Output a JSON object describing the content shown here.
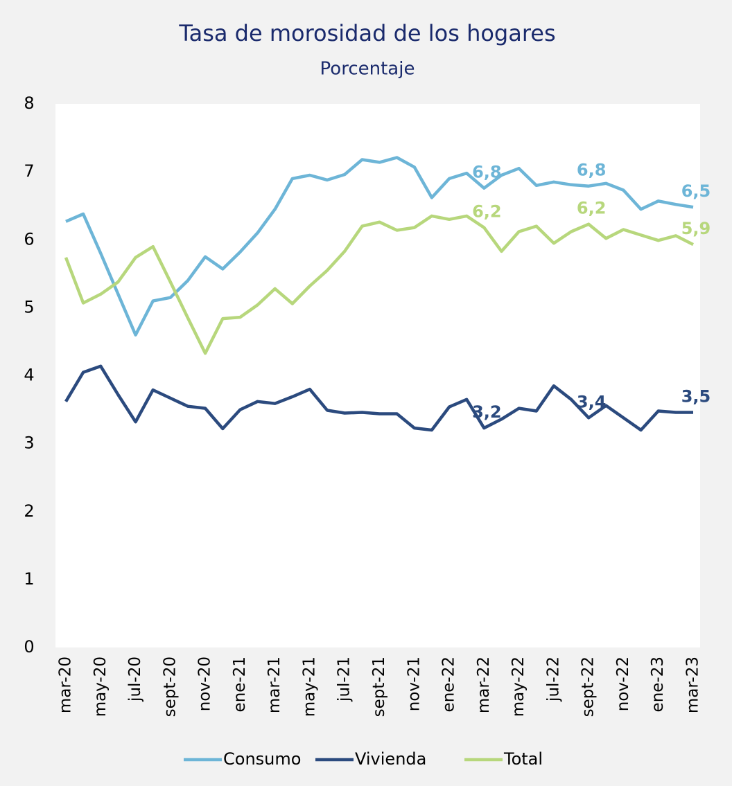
{
  "chart_data": {
    "type": "line",
    "title": "Tasa de morosidad de los hogares",
    "subtitle": "Porcentaje",
    "categories": [
      "mar-20",
      null,
      "may-20",
      null,
      "jul-20",
      null,
      "sept-20",
      null,
      "nov-20",
      null,
      "ene-21",
      null,
      "mar-21",
      null,
      "may-21",
      null,
      "jul-21",
      null,
      "sept-21",
      null,
      "nov-21",
      null,
      "ene-22",
      null,
      "mar-22",
      null,
      "may-22",
      null,
      "jul-22",
      null,
      "sept-22",
      null,
      "nov-22",
      null,
      "ene-23",
      null,
      "mar-23"
    ],
    "series": [
      {
        "name": "Consumo",
        "color": "#6db5d7",
        "values": [
          6.27,
          6.38,
          5.8,
          5.2,
          4.6,
          5.1,
          5.15,
          5.4,
          5.75,
          5.57,
          5.82,
          6.1,
          6.45,
          6.9,
          6.95,
          6.88,
          6.96,
          7.18,
          7.14,
          7.21,
          7.07,
          6.62,
          6.9,
          6.98,
          6.76,
          6.95,
          7.05,
          6.8,
          6.85,
          6.81,
          6.79,
          6.83,
          6.73,
          6.45,
          6.57,
          6.52,
          6.48
        ],
        "value_labels": [
          null,
          null,
          null,
          null,
          null,
          null,
          null,
          null,
          null,
          null,
          null,
          null,
          null,
          null,
          null,
          null,
          null,
          null,
          null,
          null,
          null,
          null,
          null,
          null,
          "6,8",
          null,
          null,
          null,
          null,
          null,
          "6,8",
          null,
          null,
          null,
          null,
          null,
          "6,5"
        ]
      },
      {
        "name": "Vivienda",
        "color": "#2b4a7e",
        "values": [
          3.62,
          4.05,
          4.14,
          3.72,
          3.32,
          3.79,
          3.67,
          3.55,
          3.52,
          3.22,
          3.5,
          3.62,
          3.59,
          3.69,
          3.8,
          3.49,
          3.45,
          3.46,
          3.44,
          3.44,
          3.23,
          3.2,
          3.54,
          3.65,
          3.23,
          3.36,
          3.52,
          3.48,
          3.85,
          3.65,
          3.38,
          3.56,
          3.38,
          3.2,
          3.48,
          3.46,
          3.46
        ],
        "value_labels": [
          null,
          null,
          null,
          null,
          null,
          null,
          null,
          null,
          null,
          null,
          null,
          null,
          null,
          null,
          null,
          null,
          null,
          null,
          null,
          null,
          null,
          null,
          null,
          null,
          "3,2",
          null,
          null,
          null,
          null,
          null,
          "3,4",
          null,
          null,
          null,
          null,
          null,
          "3,5"
        ]
      },
      {
        "name": "Total",
        "color": "#b7d77c",
        "values": [
          5.74,
          5.07,
          5.2,
          5.38,
          5.74,
          5.9,
          5.38,
          4.85,
          4.33,
          4.84,
          4.86,
          5.04,
          5.28,
          5.06,
          5.32,
          5.55,
          5.83,
          6.2,
          6.26,
          6.14,
          6.18,
          6.35,
          6.3,
          6.35,
          6.18,
          5.83,
          6.12,
          6.2,
          5.95,
          6.12,
          6.23,
          6.02,
          6.15,
          6.07,
          5.99,
          6.06,
          5.93
        ],
        "value_labels": [
          null,
          null,
          null,
          null,
          null,
          null,
          null,
          null,
          null,
          null,
          null,
          null,
          null,
          null,
          null,
          null,
          null,
          null,
          null,
          null,
          null,
          null,
          null,
          null,
          "6,2",
          null,
          null,
          null,
          null,
          null,
          "6,2",
          null,
          null,
          null,
          null,
          null,
          "5,9"
        ]
      }
    ],
    "ylim": [
      0,
      8
    ],
    "yticks": [
      0,
      1,
      2,
      3,
      4,
      5,
      6,
      7,
      8
    ],
    "grid": false,
    "legend": "bottom"
  }
}
